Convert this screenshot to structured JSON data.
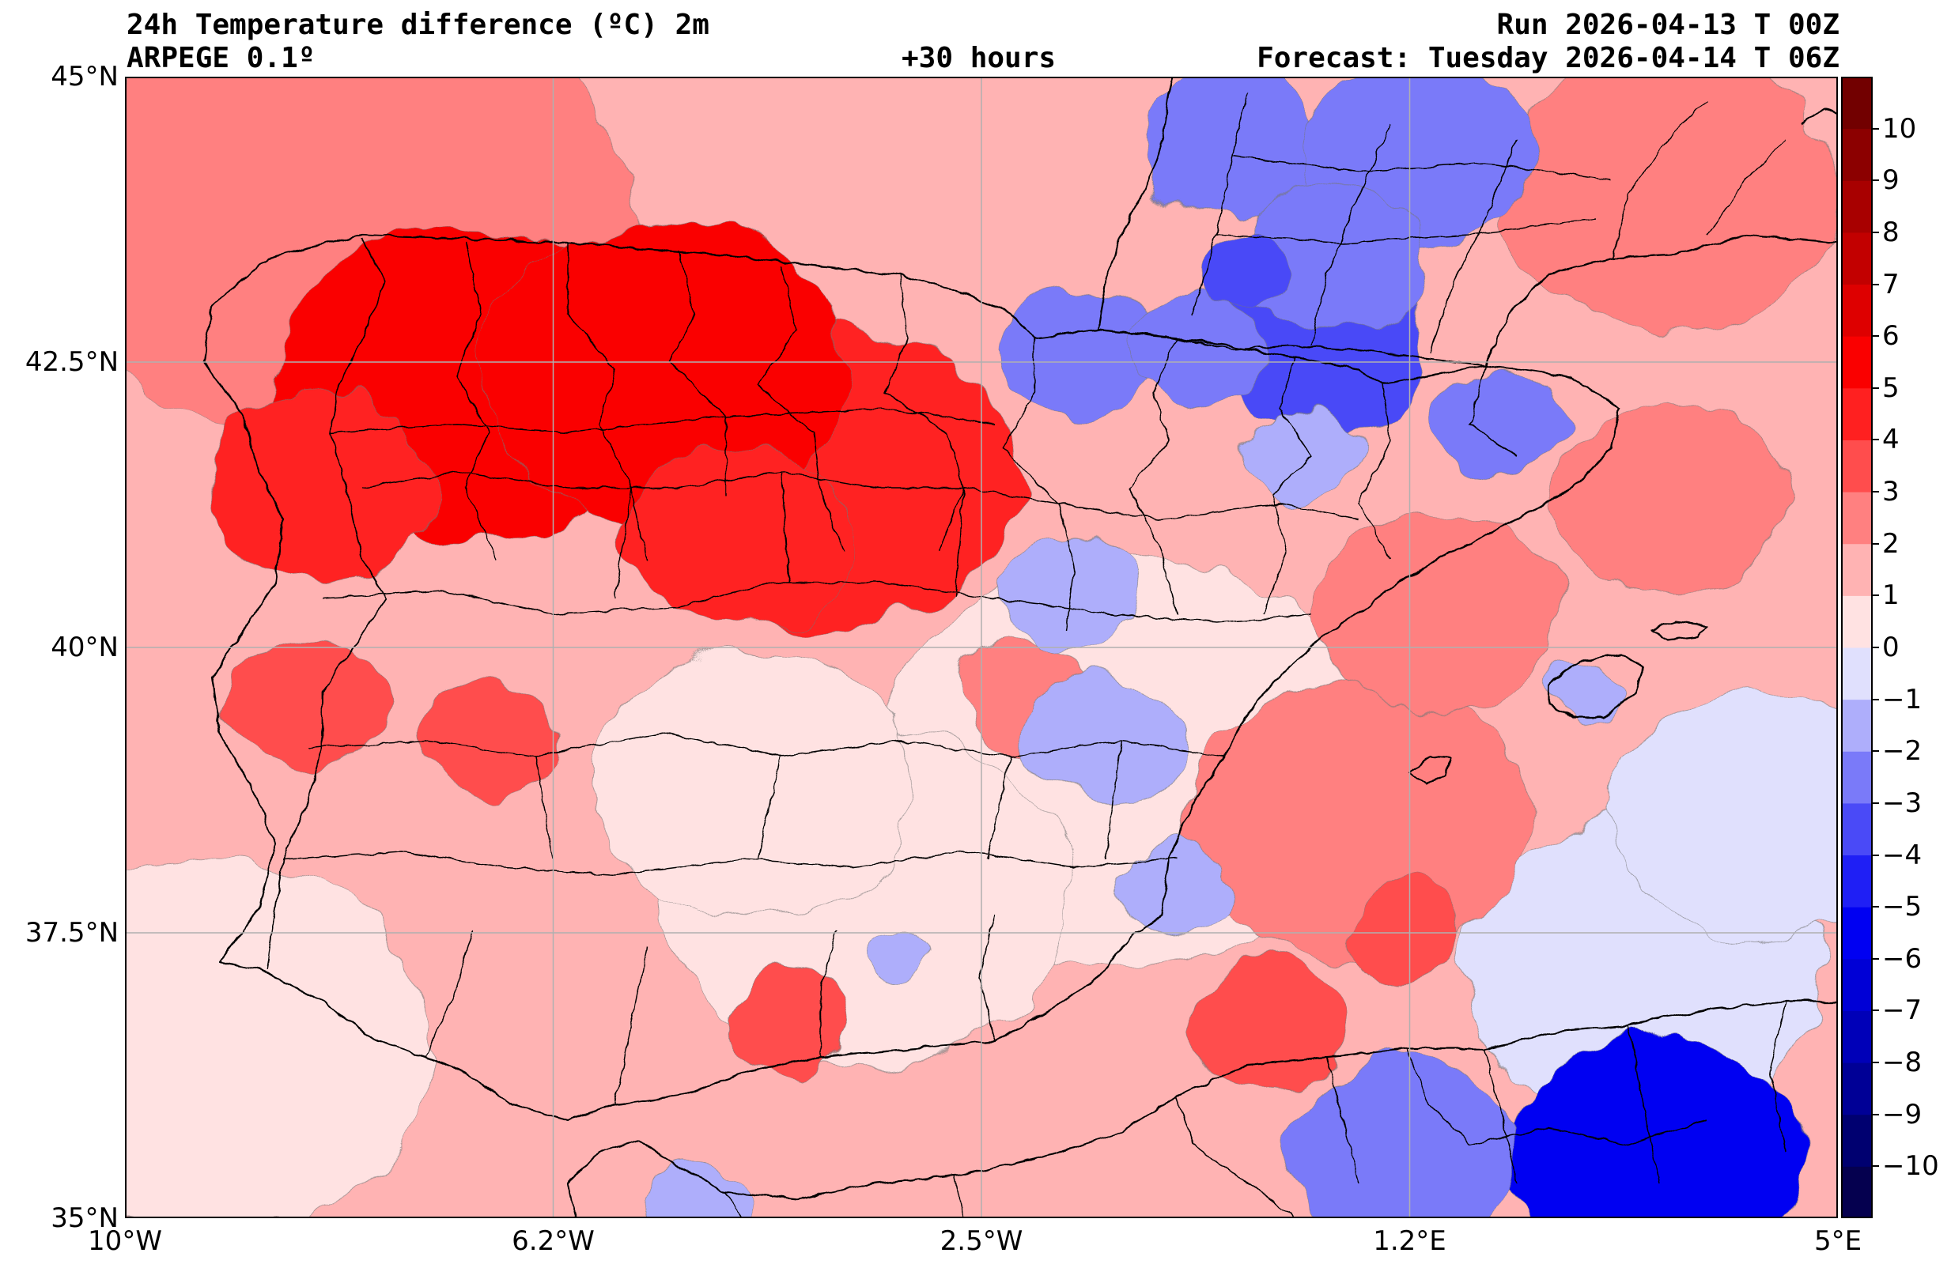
{
  "header": {
    "title": "24h Temperature difference (ºC) 2m",
    "model": "ARPEGE 0.1º",
    "lead": "+30 hours",
    "run": "Run 2026-04-13 T 00Z",
    "forecast": "Forecast: Tuesday 2026-04-14 T 06Z"
  },
  "map": {
    "lon_range": [
      -10,
      5
    ],
    "lat_range": [
      35,
      45
    ],
    "lat_ticks": [
      {
        "value": 45,
        "label": "45°N"
      },
      {
        "value": 42.5,
        "label": "42.5°N"
      },
      {
        "value": 40,
        "label": "40°N"
      },
      {
        "value": 37.5,
        "label": "37.5°N"
      },
      {
        "value": 35,
        "label": "35°N"
      }
    ],
    "lon_ticks": [
      {
        "value": -10,
        "label": "10°W"
      },
      {
        "value": -6.25,
        "label": "6.2°W"
      },
      {
        "value": -2.5,
        "label": "2.5°W"
      },
      {
        "value": 1.25,
        "label": "1.2°E"
      },
      {
        "value": 5,
        "label": "5°E"
      }
    ]
  },
  "colorbar": {
    "range": [
      -11,
      11
    ],
    "levels": [
      {
        "lo": -11,
        "hi": -10,
        "color": "#05004f"
      },
      {
        "lo": -10,
        "hi": -9,
        "color": "#000070"
      },
      {
        "lo": -9,
        "hi": -8,
        "color": "#000096"
      },
      {
        "lo": -8,
        "hi": -7,
        "color": "#0000b8"
      },
      {
        "lo": -7,
        "hi": -6,
        "color": "#0000d6"
      },
      {
        "lo": -6,
        "hi": -5,
        "color": "#0000f2"
      },
      {
        "lo": -5,
        "hi": -4,
        "color": "#1f1ff5"
      },
      {
        "lo": -4,
        "hi": -3,
        "color": "#4a4af7"
      },
      {
        "lo": -3,
        "hi": -2,
        "color": "#7a7af9"
      },
      {
        "lo": -2,
        "hi": -1,
        "color": "#aeaefb"
      },
      {
        "lo": -1,
        "hi": 0,
        "color": "#e0e0fd"
      },
      {
        "lo": 0,
        "hi": 1,
        "color": "#ffe2e2"
      },
      {
        "lo": 1,
        "hi": 2,
        "color": "#ffb3b3"
      },
      {
        "lo": 2,
        "hi": 3,
        "color": "#ff8080"
      },
      {
        "lo": 3,
        "hi": 4,
        "color": "#ff4d4d"
      },
      {
        "lo": 4,
        "hi": 5,
        "color": "#ff2020"
      },
      {
        "lo": 5,
        "hi": 6,
        "color": "#fa0000"
      },
      {
        "lo": 6,
        "hi": 7,
        "color": "#de0000"
      },
      {
        "lo": 7,
        "hi": 8,
        "color": "#c20000"
      },
      {
        "lo": 8,
        "hi": 9,
        "color": "#a80000"
      },
      {
        "lo": 9,
        "hi": 10,
        "color": "#8c0000"
      },
      {
        "lo": 10,
        "hi": 11,
        "color": "#720000"
      }
    ],
    "tick_labels": [
      "10",
      "9",
      "8",
      "7",
      "6",
      "5",
      "4",
      "3",
      "2",
      "1",
      "0",
      "−1",
      "−2",
      "−3",
      "−4",
      "−5",
      "−6",
      "−7",
      "−8",
      "−9",
      "−10"
    ],
    "tick_values": [
      10,
      9,
      8,
      7,
      6,
      5,
      4,
      3,
      2,
      1,
      0,
      -1,
      -2,
      -3,
      -4,
      -5,
      -6,
      -7,
      -8,
      -9,
      -10
    ]
  },
  "field": {
    "background": "#ffb3b3",
    "blobs": [
      {
        "lon": -1.2,
        "lat": 39.0,
        "r": 2.2,
        "v": 0.3
      },
      {
        "lon": -3.5,
        "lat": 37.8,
        "r": 1.8,
        "v": 0.5
      },
      {
        "lon": -4.5,
        "lat": 38.8,
        "r": 1.4,
        "v": 0.6
      },
      {
        "lon": -9.3,
        "lat": 36.5,
        "r": 2.0,
        "v": 0.8
      },
      {
        "lon": 3.3,
        "lat": 37.2,
        "r": 1.6,
        "v": -0.4
      },
      {
        "lon": 4.3,
        "lat": 38.5,
        "r": 1.3,
        "v": -0.3
      },
      {
        "lon": 0.8,
        "lat": 38.5,
        "r": 1.5,
        "v": 2.4
      },
      {
        "lon": 1.5,
        "lat": 40.3,
        "r": 1.1,
        "v": 2.5
      },
      {
        "lon": 3.5,
        "lat": 41.3,
        "r": 1.0,
        "v": 2.3
      },
      {
        "lon": 0.0,
        "lat": 36.7,
        "r": 0.7,
        "v": 3.1
      },
      {
        "lon": 1.2,
        "lat": 37.5,
        "r": 0.5,
        "v": 3.2
      },
      {
        "lon": 3.5,
        "lat": 44.0,
        "r": 1.5,
        "v": 2.0
      },
      {
        "lon": -8.0,
        "lat": 43.7,
        "r": 2.5,
        "v": 2.6
      },
      {
        "lon": -3.8,
        "lat": 41.5,
        "r": 1.6,
        "v": 4.3
      },
      {
        "lon": -7.0,
        "lat": 42.3,
        "r": 1.7,
        "v": 5.2
      },
      {
        "lon": -5.3,
        "lat": 42.4,
        "r": 1.6,
        "v": 5.1
      },
      {
        "lon": -8.3,
        "lat": 41.4,
        "r": 1.0,
        "v": 4.8
      },
      {
        "lon": -4.6,
        "lat": 41.0,
        "r": 1.0,
        "v": 4.7
      },
      {
        "lon": -8.4,
        "lat": 39.5,
        "r": 0.7,
        "v": 3.8
      },
      {
        "lon": -6.8,
        "lat": 39.2,
        "r": 0.6,
        "v": 3.0
      },
      {
        "lon": -4.2,
        "lat": 36.7,
        "r": 0.55,
        "v": 3.0
      },
      {
        "lon": -2.1,
        "lat": 39.6,
        "r": 0.6,
        "v": 2.6
      },
      {
        "lon": -1.6,
        "lat": 42.6,
        "r": 0.7,
        "v": -2.7
      },
      {
        "lon": 0.5,
        "lat": 42.6,
        "r": 0.9,
        "v": -3.3
      },
      {
        "lon": -0.6,
        "lat": 42.6,
        "r": 0.6,
        "v": -2.2
      },
      {
        "lon": 2.0,
        "lat": 42.0,
        "r": 0.6,
        "v": -2.5
      },
      {
        "lon": 0.3,
        "lat": 41.7,
        "r": 0.5,
        "v": -1.3
      },
      {
        "lon": -0.3,
        "lat": 44.4,
        "r": 0.8,
        "v": -2.1
      },
      {
        "lon": 1.3,
        "lat": 44.3,
        "r": 1.0,
        "v": -2.3
      },
      {
        "lon": 0.6,
        "lat": 43.4,
        "r": 0.8,
        "v": -2.7
      },
      {
        "lon": -0.2,
        "lat": 43.3,
        "r": 0.4,
        "v": -3.5
      },
      {
        "lon": -1.7,
        "lat": 40.5,
        "r": 0.6,
        "v": -1.3
      },
      {
        "lon": -1.4,
        "lat": 39.2,
        "r": 0.7,
        "v": -1.9
      },
      {
        "lon": -0.8,
        "lat": 37.9,
        "r": 0.5,
        "v": -1.4
      },
      {
        "lon": -3.2,
        "lat": 37.3,
        "r": 0.25,
        "v": -1.6
      },
      {
        "lon": 2.8,
        "lat": 39.6,
        "r": 0.35,
        "v": -1.4
      },
      {
        "lon": 3.4,
        "lat": 35.5,
        "r": 1.3,
        "v": -5.1
      },
      {
        "lon": 1.2,
        "lat": 35.6,
        "r": 1.0,
        "v": -2.8
      },
      {
        "lon": -5.0,
        "lat": 35.1,
        "r": 0.45,
        "v": -1.4
      }
    ]
  }
}
